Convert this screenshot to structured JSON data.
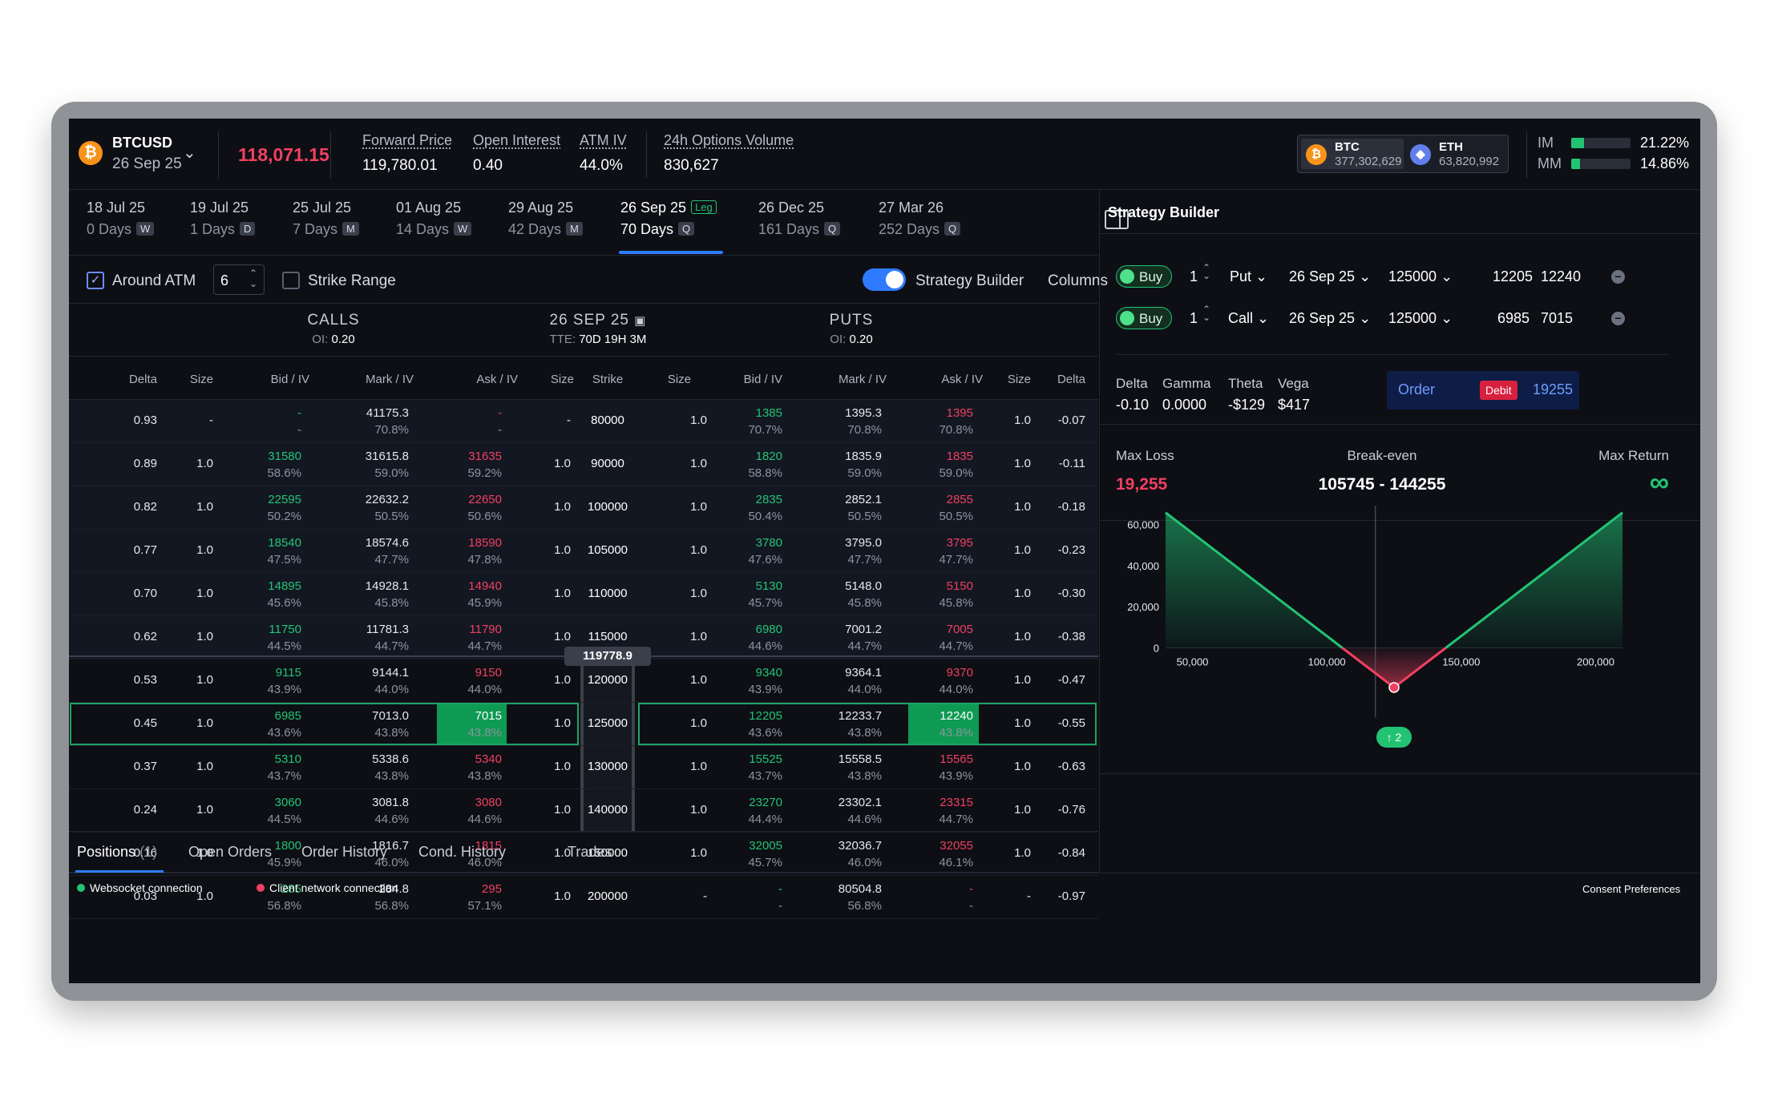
{
  "header": {
    "symbol": "BTCUSD",
    "symbol_icon": "₿",
    "expiry": "26 Sep 25",
    "last_price": "118,071.15",
    "stats": [
      {
        "label": "Forward Price",
        "value": "119,780.01"
      },
      {
        "label": "Open Interest",
        "value": "0.40"
      },
      {
        "label": "ATM IV",
        "value": "44.0%"
      },
      {
        "label": "24h Options Volume",
        "value": "830,627"
      }
    ],
    "coins": [
      {
        "name": "BTC",
        "value": "377,302,629",
        "icon": "₿",
        "color": "#f7931a"
      },
      {
        "name": "ETH",
        "value": "63,820,992",
        "icon": "◆",
        "color": "#627eea"
      }
    ],
    "margins": [
      {
        "label": "IM",
        "value": "21.22%",
        "fill": 0.2122
      },
      {
        "label": "MM",
        "value": "14.86%",
        "fill": 0.1486
      }
    ]
  },
  "expiries": [
    {
      "date": "18 Jul 25",
      "days": "0 Days",
      "badge": "W"
    },
    {
      "date": "19 Jul 25",
      "days": "1 Days",
      "badge": "D"
    },
    {
      "date": "25 Jul 25",
      "days": "7 Days",
      "badge": "M"
    },
    {
      "date": "01 Aug 25",
      "days": "14 Days",
      "badge": "W"
    },
    {
      "date": "29 Aug 25",
      "days": "42 Days",
      "badge": "M"
    },
    {
      "date": "26 Sep 25",
      "days": "70 Days",
      "badge": "Q",
      "leg": "Leg"
    },
    {
      "date": "26 Dec 25",
      "days": "161 Days",
      "badge": "Q"
    },
    {
      "date": "27 Mar 26",
      "days": "252 Days",
      "badge": "Q"
    }
  ],
  "controls": {
    "around_atm": "Around ATM",
    "atm_count": "6",
    "strike_range": "Strike Range",
    "strategy_builder": "Strategy Builder",
    "columns": "Columns"
  },
  "chain": {
    "calls_title": "CALLS",
    "calls_oi_label": "OI:",
    "calls_oi": "0.20",
    "expiry_title": "26 SEP 25",
    "tte_label": "TTE:",
    "tte": "70D 19H 3M",
    "puts_title": "PUTS",
    "puts_oi_label": "OI:",
    "puts_oi": "0.20",
    "columns": [
      "Delta",
      "Size",
      "Bid / IV",
      "Mark / IV",
      "Ask / IV",
      "Size",
      "Strike",
      "Size",
      "Bid / IV",
      "Mark / IV",
      "Ask / IV",
      "Size",
      "Delta"
    ],
    "atm_price": "119778.9",
    "rows": [
      {
        "strike": "80000",
        "c_delta": "0.93",
        "c_bsize": "-",
        "c_bid": "-",
        "c_bid_iv": "-",
        "c_mark": "41175.3",
        "c_mark_iv": "70.8%",
        "c_ask": "-",
        "c_ask_iv": "-",
        "c_asize": "-",
        "p_bsize": "1.0",
        "p_bid": "1385",
        "p_bid_iv": "70.7%",
        "p_mark": "1395.3",
        "p_mark_iv": "70.8%",
        "p_ask": "1395",
        "p_ask_iv": "70.8%",
        "p_asize": "1.0",
        "p_delta": "-0.07"
      },
      {
        "strike": "90000",
        "c_delta": "0.89",
        "c_bsize": "1.0",
        "c_bid": "31580",
        "c_bid_iv": "58.6%",
        "c_mark": "31615.8",
        "c_mark_iv": "59.0%",
        "c_ask": "31635",
        "c_ask_iv": "59.2%",
        "c_asize": "1.0",
        "p_bsize": "1.0",
        "p_bid": "1820",
        "p_bid_iv": "58.8%",
        "p_mark": "1835.9",
        "p_mark_iv": "59.0%",
        "p_ask": "1835",
        "p_ask_iv": "59.0%",
        "p_asize": "1.0",
        "p_delta": "-0.11"
      },
      {
        "strike": "100000",
        "c_delta": "0.82",
        "c_bsize": "1.0",
        "c_bid": "22595",
        "c_bid_iv": "50.2%",
        "c_mark": "22632.2",
        "c_mark_iv": "50.5%",
        "c_ask": "22650",
        "c_ask_iv": "50.6%",
        "c_asize": "1.0",
        "p_bsize": "1.0",
        "p_bid": "2835",
        "p_bid_iv": "50.4%",
        "p_mark": "2852.1",
        "p_mark_iv": "50.5%",
        "p_ask": "2855",
        "p_ask_iv": "50.5%",
        "p_asize": "1.0",
        "p_delta": "-0.18"
      },
      {
        "strike": "105000",
        "c_delta": "0.77",
        "c_bsize": "1.0",
        "c_bid": "18540",
        "c_bid_iv": "47.5%",
        "c_mark": "18574.6",
        "c_mark_iv": "47.7%",
        "c_ask": "18590",
        "c_ask_iv": "47.8%",
        "c_asize": "1.0",
        "p_bsize": "1.0",
        "p_bid": "3780",
        "p_bid_iv": "47.6%",
        "p_mark": "3795.0",
        "p_mark_iv": "47.7%",
        "p_ask": "3795",
        "p_ask_iv": "47.7%",
        "p_asize": "1.0",
        "p_delta": "-0.23"
      },
      {
        "strike": "110000",
        "c_delta": "0.70",
        "c_bsize": "1.0",
        "c_bid": "14895",
        "c_bid_iv": "45.6%",
        "c_mark": "14928.1",
        "c_mark_iv": "45.8%",
        "c_ask": "14940",
        "c_ask_iv": "45.9%",
        "c_asize": "1.0",
        "p_bsize": "1.0",
        "p_bid": "5130",
        "p_bid_iv": "45.7%",
        "p_mark": "5148.0",
        "p_mark_iv": "45.8%",
        "p_ask": "5150",
        "p_ask_iv": "45.8%",
        "p_asize": "1.0",
        "p_delta": "-0.30"
      },
      {
        "strike": "115000",
        "c_delta": "0.62",
        "c_bsize": "1.0",
        "c_bid": "11750",
        "c_bid_iv": "44.5%",
        "c_mark": "11781.3",
        "c_mark_iv": "44.7%",
        "c_ask": "11790",
        "c_ask_iv": "44.7%",
        "c_asize": "1.0",
        "p_bsize": "1.0",
        "p_bid": "6980",
        "p_bid_iv": "44.6%",
        "p_mark": "7001.2",
        "p_mark_iv": "44.7%",
        "p_ask": "7005",
        "p_ask_iv": "44.7%",
        "p_asize": "1.0",
        "p_delta": "-0.38"
      },
      {
        "strike": "120000",
        "c_delta": "0.53",
        "c_bsize": "1.0",
        "c_bid": "9115",
        "c_bid_iv": "43.9%",
        "c_mark": "9144.1",
        "c_mark_iv": "44.0%",
        "c_ask": "9150",
        "c_ask_iv": "44.0%",
        "c_asize": "1.0",
        "p_bsize": "1.0",
        "p_bid": "9340",
        "p_bid_iv": "43.9%",
        "p_mark": "9364.1",
        "p_mark_iv": "44.0%",
        "p_ask": "9370",
        "p_ask_iv": "44.0%",
        "p_asize": "1.0",
        "p_delta": "-0.47"
      },
      {
        "strike": "125000",
        "c_delta": "0.45",
        "c_bsize": "1.0",
        "c_bid": "6985",
        "c_bid_iv": "43.6%",
        "c_mark": "7013.0",
        "c_mark_iv": "43.8%",
        "c_ask": "7015",
        "c_ask_iv": "43.8%",
        "c_asize": "1.0",
        "p_bsize": "1.0",
        "p_bid": "12205",
        "p_bid_iv": "43.6%",
        "p_mark": "12233.7",
        "p_mark_iv": "43.8%",
        "p_ask": "12240",
        "p_ask_iv": "43.8%",
        "p_asize": "1.0",
        "p_delta": "-0.55"
      },
      {
        "strike": "130000",
        "c_delta": "0.37",
        "c_bsize": "1.0",
        "c_bid": "5310",
        "c_bid_iv": "43.7%",
        "c_mark": "5338.6",
        "c_mark_iv": "43.8%",
        "c_ask": "5340",
        "c_ask_iv": "43.8%",
        "c_asize": "1.0",
        "p_bsize": "1.0",
        "p_bid": "15525",
        "p_bid_iv": "43.7%",
        "p_mark": "15558.5",
        "p_mark_iv": "43.8%",
        "p_ask": "15565",
        "p_ask_iv": "43.9%",
        "p_asize": "1.0",
        "p_delta": "-0.63"
      },
      {
        "strike": "140000",
        "c_delta": "0.24",
        "c_bsize": "1.0",
        "c_bid": "3060",
        "c_bid_iv": "44.5%",
        "c_mark": "3081.8",
        "c_mark_iv": "44.6%",
        "c_ask": "3080",
        "c_ask_iv": "44.6%",
        "c_asize": "1.0",
        "p_bsize": "1.0",
        "p_bid": "23270",
        "p_bid_iv": "44.4%",
        "p_mark": "23302.1",
        "p_mark_iv": "44.6%",
        "p_ask": "23315",
        "p_ask_iv": "44.7%",
        "p_asize": "1.0",
        "p_delta": "-0.76"
      },
      {
        "strike": "150000",
        "c_delta": "0.16",
        "c_bsize": "1.0",
        "c_bid": "1800",
        "c_bid_iv": "45.9%",
        "c_mark": "1816.7",
        "c_mark_iv": "46.0%",
        "c_ask": "1815",
        "c_ask_iv": "46.0%",
        "c_asize": "1.0",
        "p_bsize": "1.0",
        "p_bid": "32005",
        "p_bid_iv": "45.7%",
        "p_mark": "32036.7",
        "p_mark_iv": "46.0%",
        "p_ask": "32055",
        "p_ask_iv": "46.1%",
        "p_asize": "1.0",
        "p_delta": "-0.84"
      },
      {
        "strike": "200000",
        "c_delta": "0.03",
        "c_bsize": "1.0",
        "c_bid": "285",
        "c_bid_iv": "56.8%",
        "c_mark": "284.8",
        "c_mark_iv": "56.8%",
        "c_ask": "295",
        "c_ask_iv": "57.1%",
        "c_asize": "1.0",
        "p_bsize": "-",
        "p_bid": "-",
        "p_bid_iv": "-",
        "p_mark": "80504.8",
        "p_mark_iv": "56.8%",
        "p_ask": "-",
        "p_ask_iv": "-",
        "p_asize": "-",
        "p_delta": "-0.97"
      }
    ]
  },
  "bottom_tabs": [
    {
      "label": "Positions",
      "count": "(1)"
    },
    {
      "label": "Open Orders"
    },
    {
      "label": "Order History"
    },
    {
      "label": "Cond. History"
    },
    {
      "label": "Trades"
    }
  ],
  "status": {
    "websocket": "Websocket connection",
    "client": "Client network connection",
    "consent": "Consent Preferences"
  },
  "strategy": {
    "title": "Strategy Builder",
    "legs": [
      {
        "side": "Buy",
        "qty": "1",
        "type": "Put",
        "expiry": "26 Sep 25",
        "strike": "125000",
        "bid": "12205",
        "ask": "12240"
      },
      {
        "side": "Buy",
        "qty": "1",
        "type": "Call",
        "expiry": "26 Sep 25",
        "strike": "125000",
        "bid": "6985",
        "ask": "7015"
      }
    ],
    "greeks": [
      {
        "label": "Delta",
        "value": "-0.10"
      },
      {
        "label": "Gamma",
        "value": "0.0000"
      },
      {
        "label": "Theta",
        "value": "-$129"
      },
      {
        "label": "Vega",
        "value": "$417"
      }
    ],
    "order_label": "Order",
    "debit_label": "Debit",
    "order_amount": "19255",
    "max_loss_label": "Max Loss",
    "max_loss": "19,255",
    "breakeven_label": "Break-even",
    "breakeven": "105745 - 144255",
    "max_return_label": "Max Return",
    "max_return": "∞",
    "marker_label": "↑ 2"
  },
  "chart_data": {
    "type": "line",
    "x": [
      40000,
      125000,
      210000
    ],
    "series": [
      {
        "values": [
          65745,
          -19255,
          65745
        ]
      }
    ],
    "xticks": [
      "50,000",
      "100,000",
      "150,000",
      "200,000"
    ],
    "yticks": [
      "60,000",
      "40,000",
      "20,000",
      "0"
    ],
    "xlim": [
      40000,
      210000
    ],
    "ylim": [
      -22000,
      66000
    ],
    "current_price": 118071.15,
    "colors": {
      "profit": "#22c474",
      "loss": "#f0405f"
    }
  }
}
